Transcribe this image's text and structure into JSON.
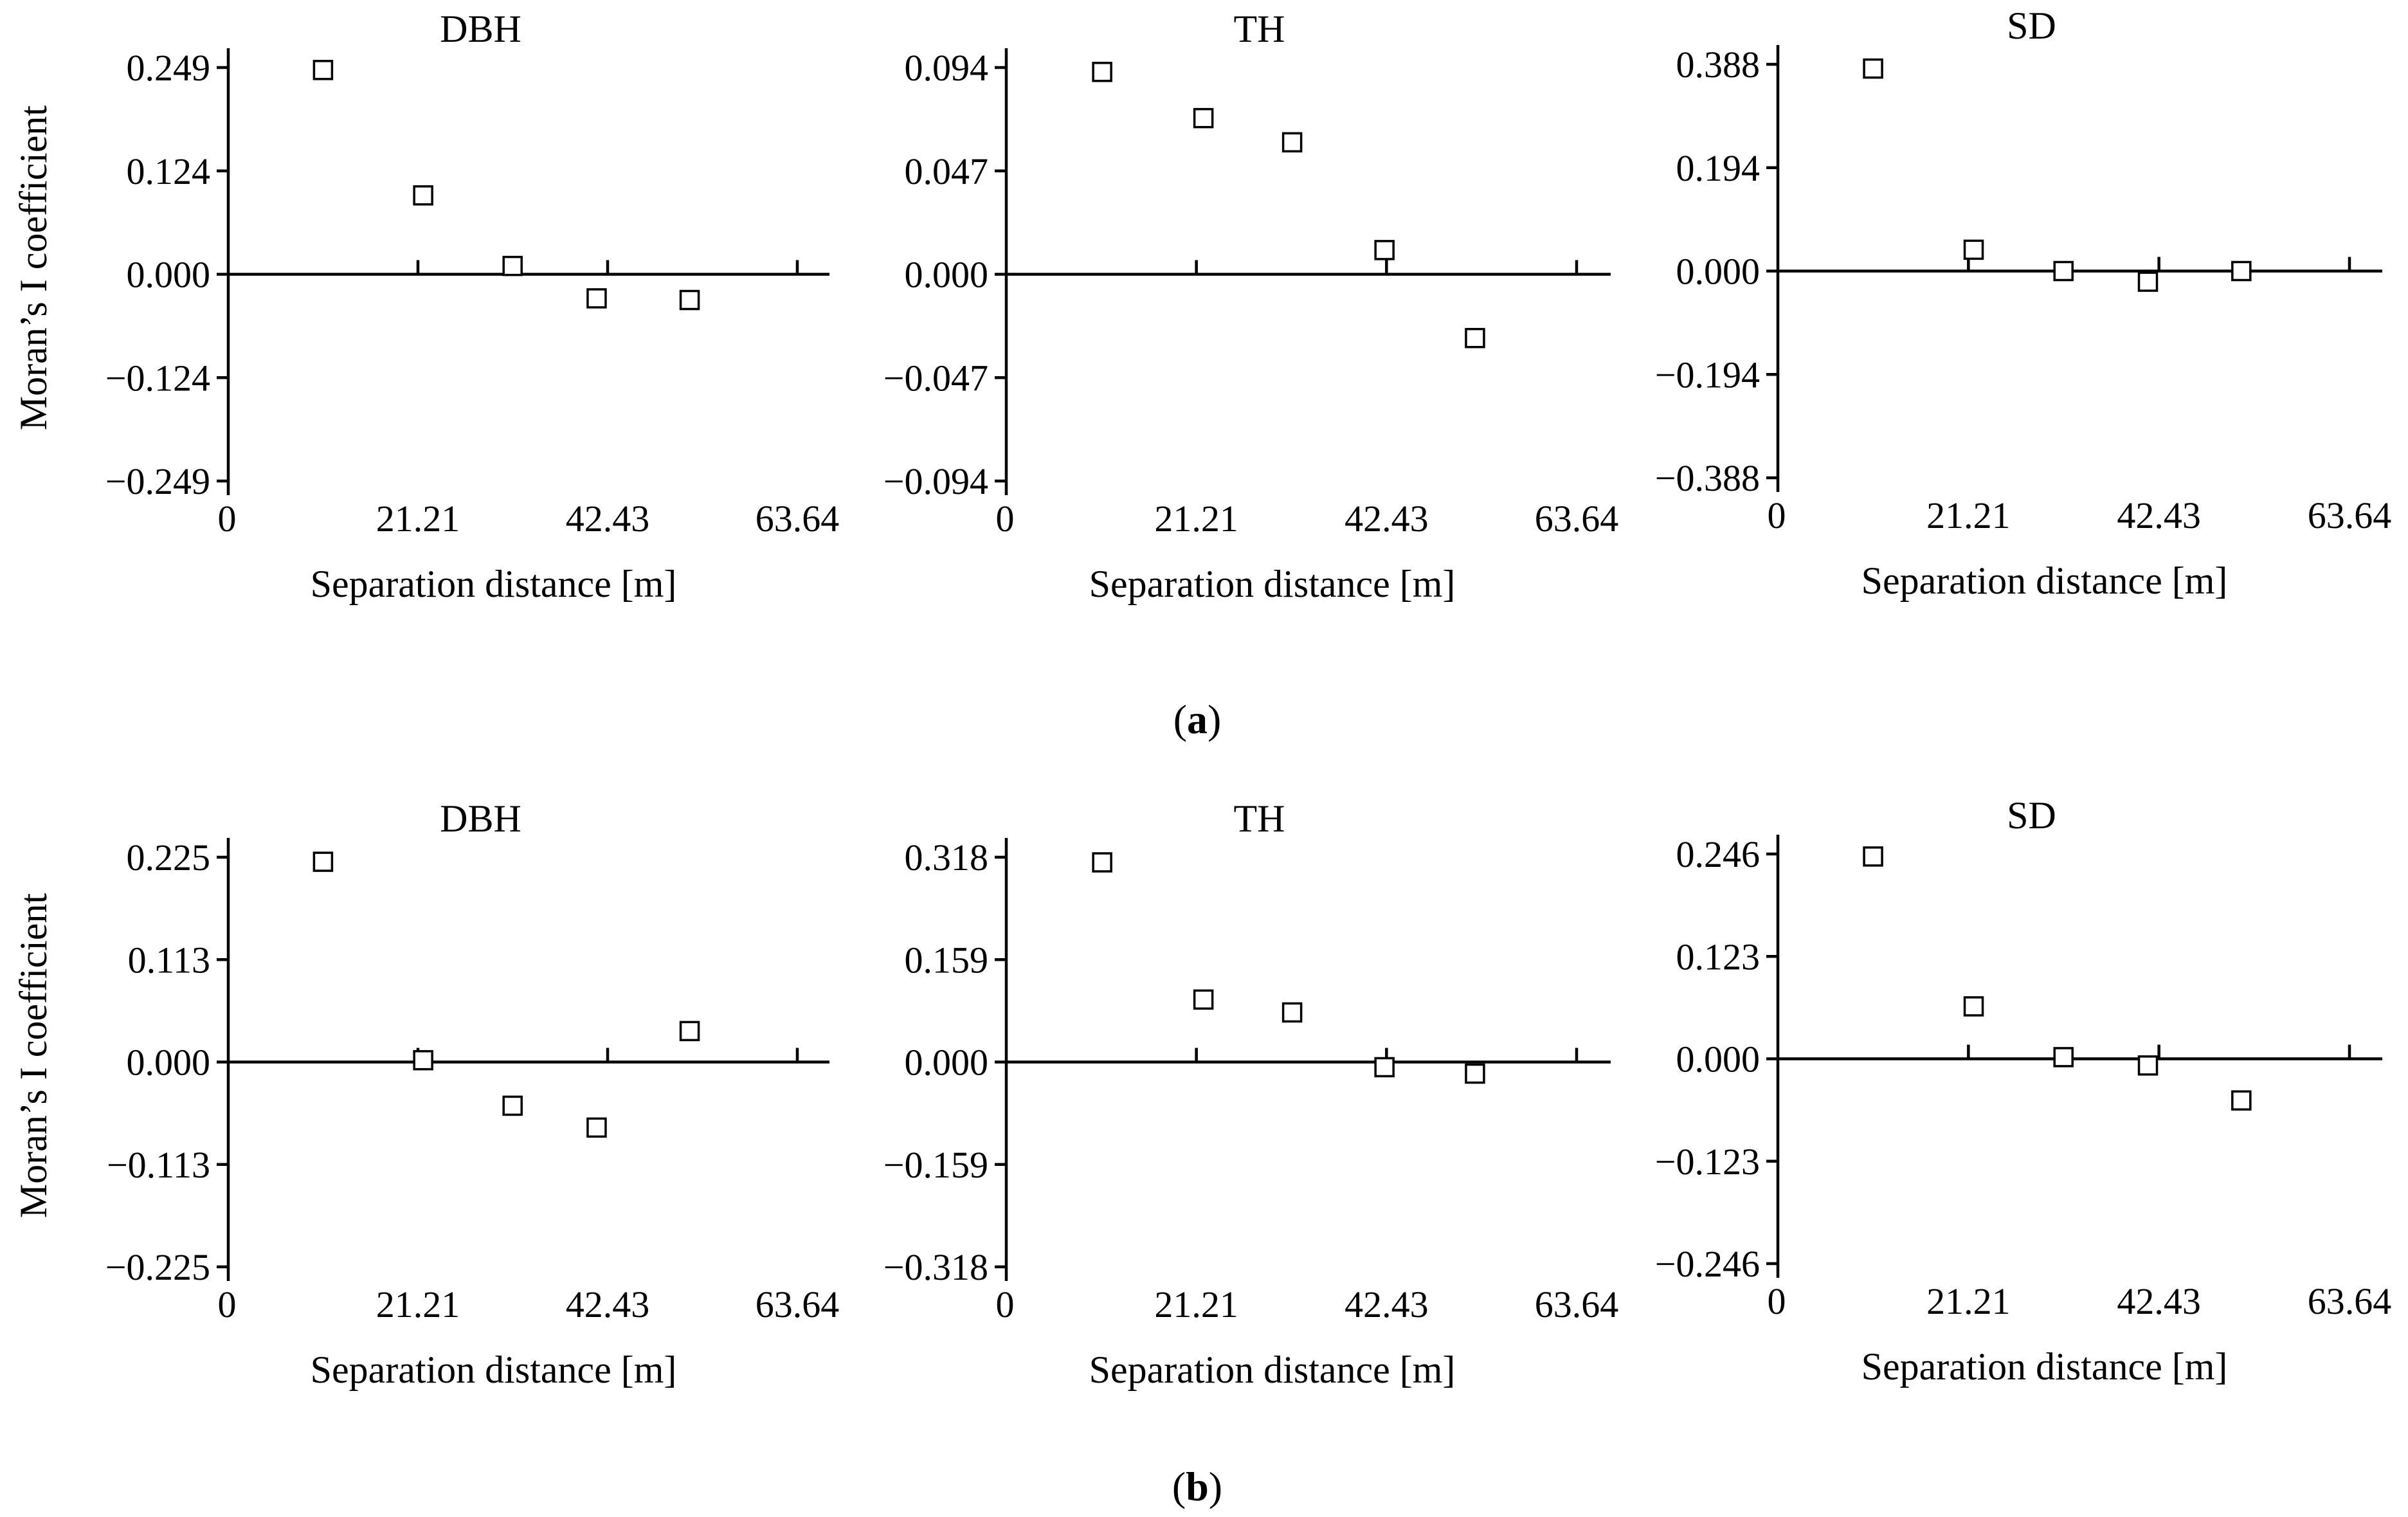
{
  "figure": {
    "rows": [
      {
        "label_open": "(",
        "label_letter": "a",
        "label_close": ")"
      },
      {
        "label_open": "(",
        "label_letter": "b",
        "label_close": ")"
      }
    ]
  },
  "chart_data": [
    {
      "type": "scatter",
      "row": "a",
      "title": "DBH",
      "xlabel": "Separation distance [m]",
      "ylabel": "Moran’s I coefficient",
      "x_ticks": [
        "0",
        "21.21",
        "42.43",
        "63.64"
      ],
      "xlim": [
        0,
        63.64
      ],
      "y_ticks": [
        "0.249",
        "0.124",
        "0.000",
        "−0.124",
        "−0.249"
      ],
      "ylim": [
        -0.249,
        0.249
      ],
      "x": [
        10.6,
        21.8,
        31.8,
        41.2,
        51.6
      ],
      "y": [
        0.246,
        0.095,
        0.01,
        -0.029,
        -0.031
      ]
    },
    {
      "type": "scatter",
      "row": "a",
      "title": "TH",
      "xlabel": "Separation distance [m]",
      "ylabel": "",
      "x_ticks": [
        "0",
        "21.21",
        "42.43",
        "63.64"
      ],
      "xlim": [
        0,
        63.64
      ],
      "y_ticks": [
        "0.094",
        "0.047",
        "0.000",
        "−0.047",
        "−0.094"
      ],
      "ylim": [
        -0.094,
        0.094
      ],
      "x": [
        10.7,
        22.0,
        31.9,
        42.2,
        52.3
      ],
      "y": [
        0.092,
        0.071,
        0.06,
        0.011,
        -0.029
      ]
    },
    {
      "type": "scatter",
      "row": "a",
      "title": "SD",
      "xlabel": "Separation distance [m]",
      "ylabel": "",
      "x_ticks": [
        "0",
        "21.21",
        "42.43",
        "63.64"
      ],
      "xlim": [
        0,
        63.64
      ],
      "y_ticks": [
        "0.388",
        "0.194",
        "0.000",
        "−0.194",
        "−0.388"
      ],
      "ylim": [
        -0.388,
        0.388
      ],
      "x": [
        10.6,
        21.8,
        31.8,
        41.2,
        51.6
      ],
      "y": [
        0.38,
        0.04,
        0.0,
        -0.02,
        0.0
      ]
    },
    {
      "type": "scatter",
      "row": "b",
      "title": "DBH",
      "xlabel": "Separation distance [m]",
      "ylabel": "Moran’s I coefficient",
      "x_ticks": [
        "0",
        "21.21",
        "42.43",
        "63.64"
      ],
      "xlim": [
        0,
        63.64
      ],
      "y_ticks": [
        "0.225",
        "0.113",
        "0.000",
        "−0.113",
        "−0.225"
      ],
      "ylim": [
        -0.225,
        0.225
      ],
      "x": [
        10.6,
        21.8,
        31.8,
        41.2,
        51.6
      ],
      "y": [
        0.22,
        0.002,
        -0.048,
        -0.072,
        0.034
      ]
    },
    {
      "type": "scatter",
      "row": "b",
      "title": "TH",
      "xlabel": "Separation distance [m]",
      "ylabel": "",
      "x_ticks": [
        "0",
        "21.21",
        "42.43",
        "63.64"
      ],
      "xlim": [
        0,
        63.64
      ],
      "y_ticks": [
        "0.318",
        "0.159",
        "0.000",
        "−0.159",
        "−0.318"
      ],
      "ylim": [
        -0.318,
        0.318
      ],
      "x": [
        10.7,
        22.0,
        31.9,
        42.2,
        52.3
      ],
      "y": [
        0.31,
        0.097,
        0.077,
        -0.008,
        -0.018
      ]
    },
    {
      "type": "scatter",
      "row": "b",
      "title": "SD",
      "xlabel": "Separation distance [m]",
      "ylabel": "",
      "x_ticks": [
        "0",
        "21.21",
        "42.43",
        "63.64"
      ],
      "xlim": [
        0,
        63.64
      ],
      "y_ticks": [
        "0.246",
        "0.123",
        "0.000",
        "−0.123",
        "−0.246"
      ],
      "ylim": [
        -0.246,
        0.246
      ],
      "x": [
        10.6,
        21.8,
        31.8,
        41.2,
        51.6
      ],
      "y": [
        0.243,
        0.063,
        0.002,
        -0.008,
        -0.05
      ]
    }
  ]
}
